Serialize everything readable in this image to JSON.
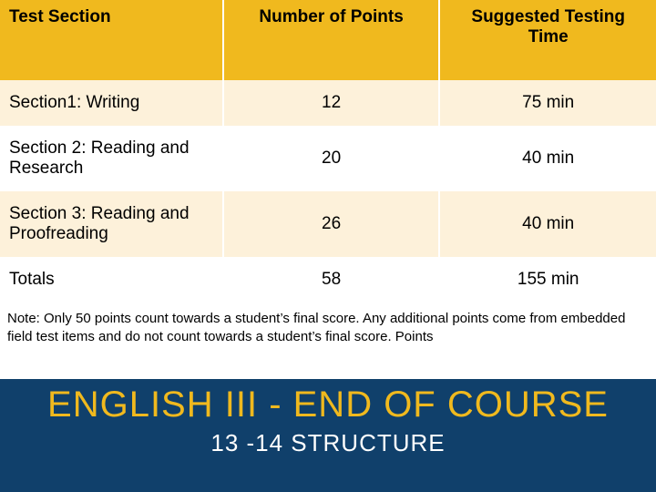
{
  "table": {
    "type": "table",
    "columns": [
      {
        "label": "Test Section",
        "align": "left",
        "width_pct": 34
      },
      {
        "label": "Number of Points",
        "align": "center",
        "width_pct": 33
      },
      {
        "label": "Suggested Testing Time",
        "align": "center",
        "width_pct": 33
      }
    ],
    "rows": [
      {
        "section": "Section1: Writing",
        "points": "12",
        "time": "75 min"
      },
      {
        "section": "Section 2: Reading and Research",
        "points": "20",
        "time": "40 min"
      },
      {
        "section": "Section 3: Reading and Proofreading",
        "points": "26",
        "time": "40 min"
      },
      {
        "section": "Totals",
        "points": "58",
        "time": "155 min"
      }
    ],
    "header_bg": "#f0b91e",
    "header_text_color": "#000000",
    "row_odd_bg": "#fdf1da",
    "row_even_bg": "#ffffff",
    "cell_text_color": "#000000",
    "header_fontsize": 19,
    "cell_fontsize": 19,
    "border_color": "#ffffff"
  },
  "note": {
    "text": "Note:  Only 50 points count towards a student’s final score.  Any additional points come from embedded field test items and do not count towards a student’s final score. Points",
    "fontsize": 15,
    "color": "#000000"
  },
  "footer": {
    "title": "ENGLISH III - END OF COURSE",
    "subtitle": "13 -14 STRUCTURE",
    "bg_color": "#10406b",
    "title_color": "#f0b91e",
    "subtitle_color": "#ffffff",
    "title_fontsize": 40,
    "subtitle_fontsize": 26
  }
}
